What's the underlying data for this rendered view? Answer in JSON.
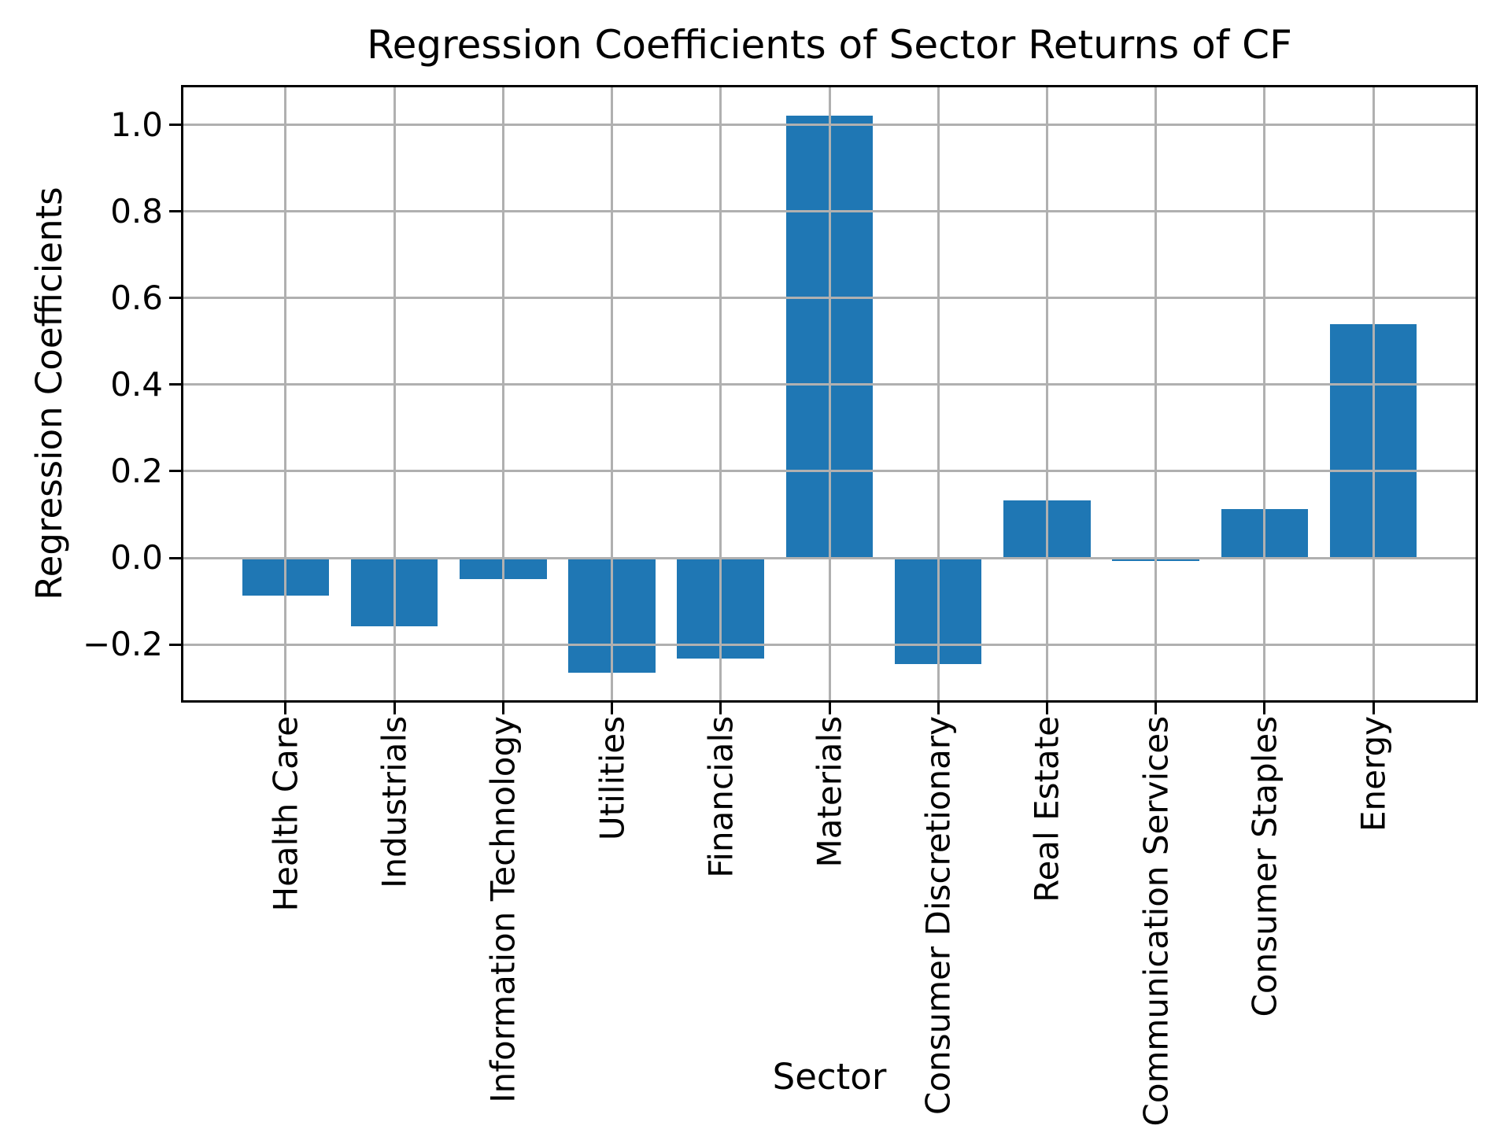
{
  "figure": {
    "background_color": "#ffffff"
  },
  "chart_data": {
    "type": "bar",
    "title": "Regression Coefficients of Sector Returns of CF",
    "xlabel": "Sector",
    "ylabel": "Regression Coefficients",
    "categories": [
      "Health Care",
      "Industrials",
      "Information Technology",
      "Utilities",
      "Financials",
      "Materials",
      "Consumer Discretionary",
      "Real Estate",
      "Communication Services",
      "Consumer Staples",
      "Energy"
    ],
    "values": [
      -0.088,
      -0.158,
      -0.049,
      -0.266,
      -0.233,
      1.022,
      -0.245,
      0.133,
      -0.007,
      0.113,
      0.54
    ],
    "bar_color": "#1f77b4",
    "bar_width": 0.8,
    "grid": true,
    "grid_color": "#b0b0b0",
    "grid_above_bars": true,
    "axis_color": "#000000",
    "ylim": [
      -0.329,
      1.087
    ],
    "xlim": [
      -0.94,
      10.94
    ],
    "yticks": [
      1.0,
      0.8,
      0.6,
      0.4,
      0.2,
      0.0,
      -0.2
    ],
    "ytick_labels": [
      "1.0",
      "0.8",
      "0.6",
      "0.4",
      "0.2",
      "0.0",
      "−0.2"
    ],
    "legend_position": "none"
  }
}
